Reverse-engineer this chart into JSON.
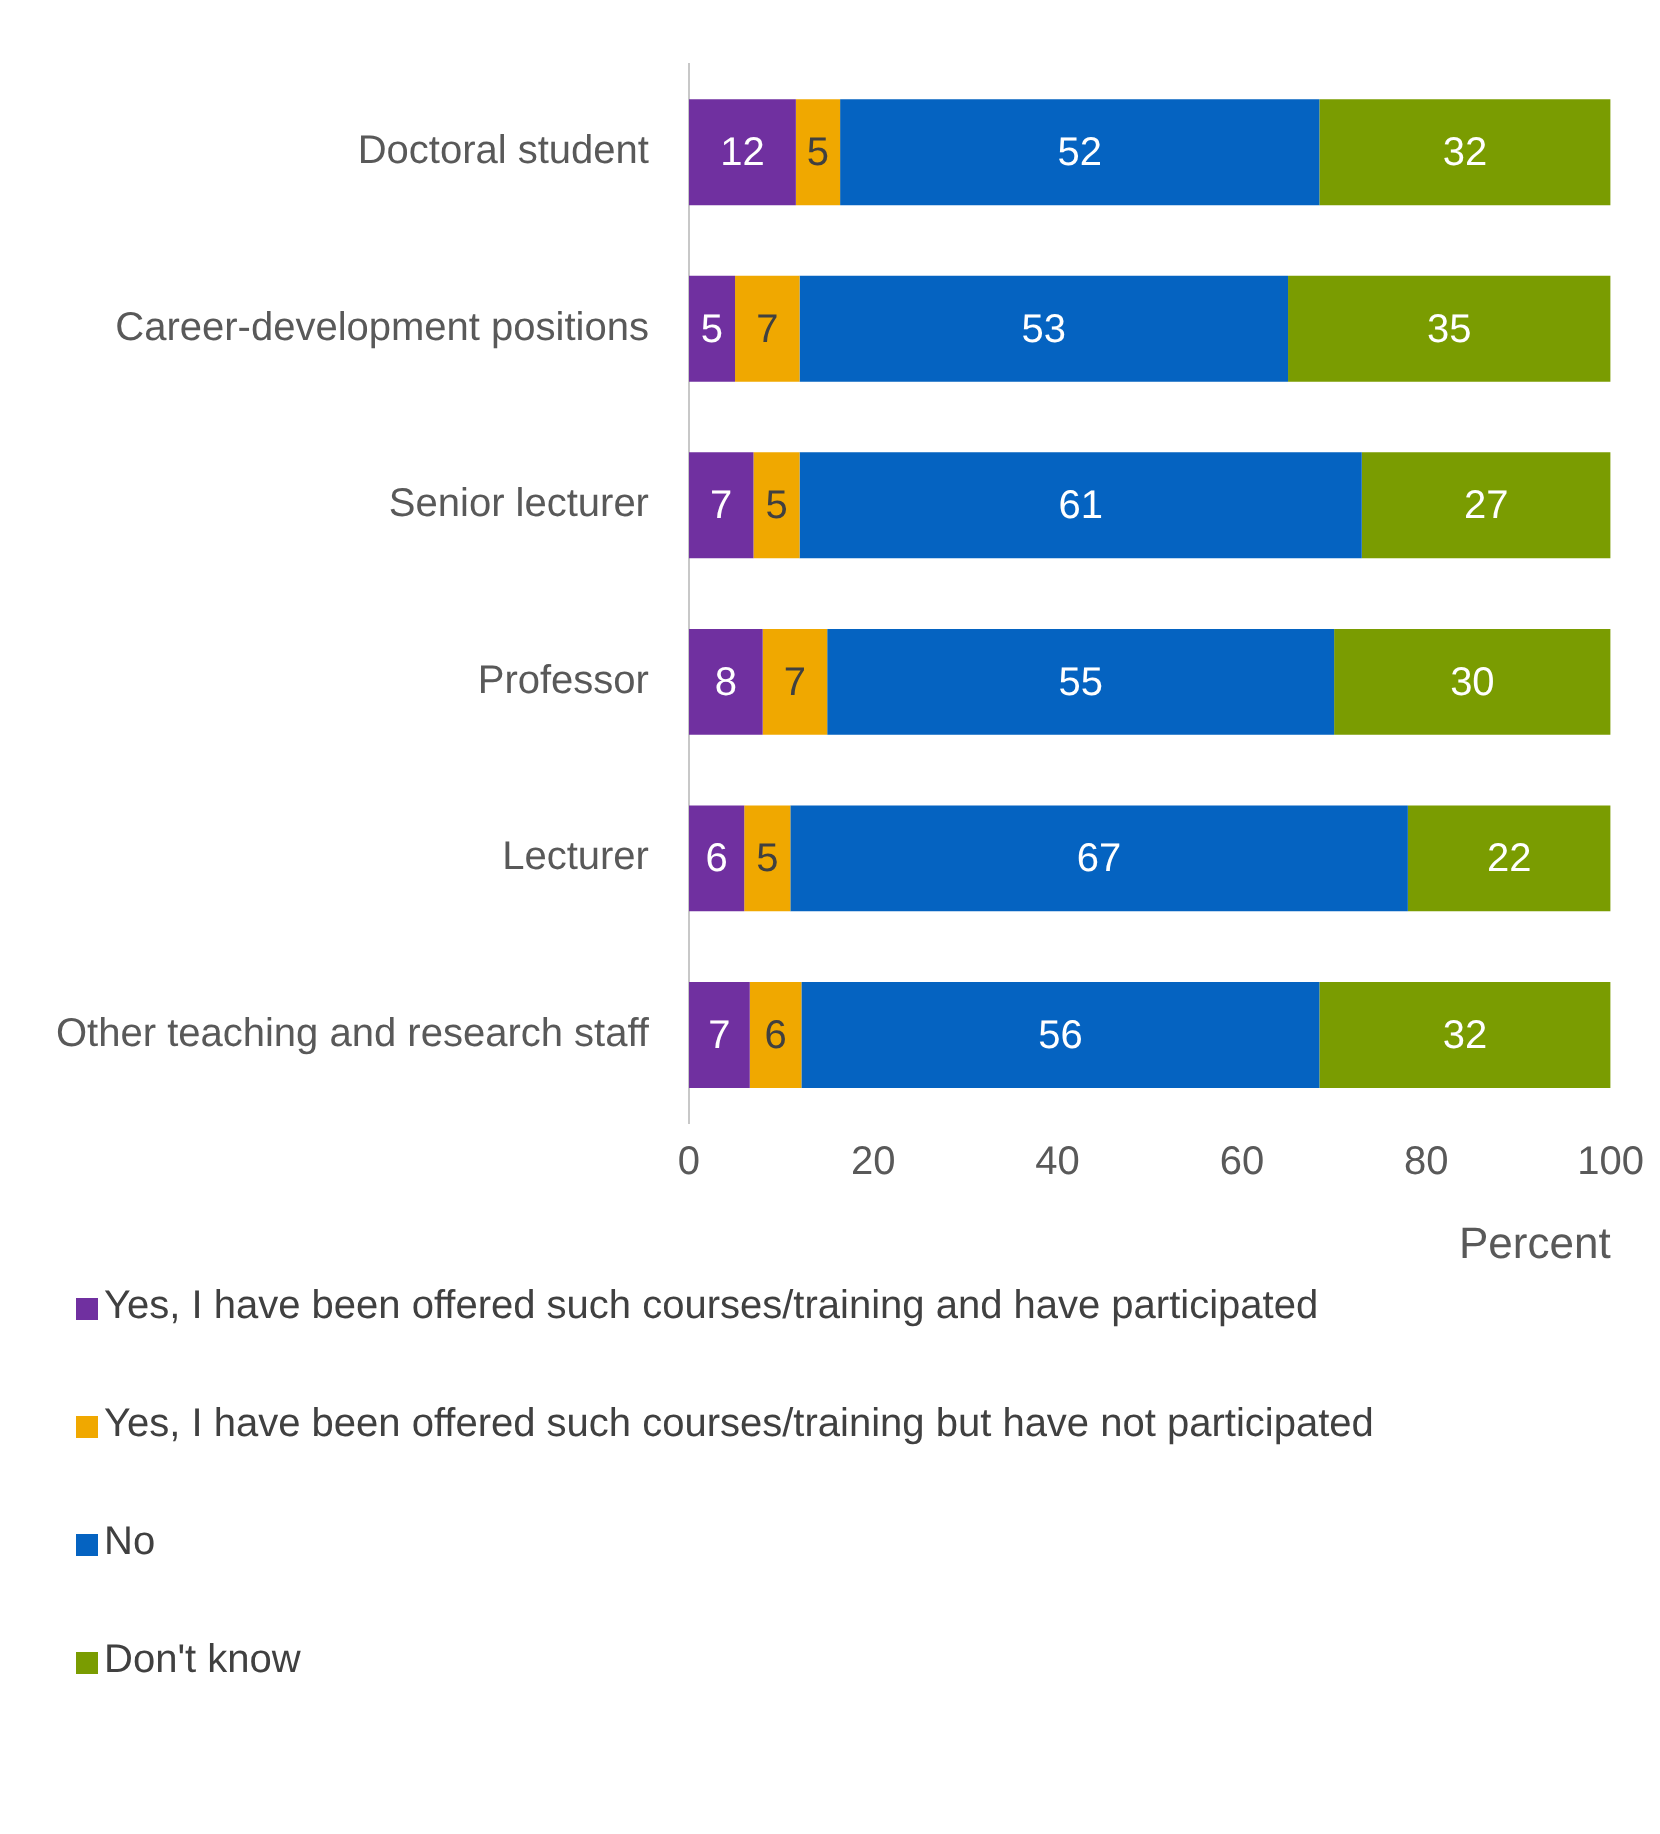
{
  "chart_data": {
    "type": "bar",
    "orientation": "horizontal",
    "stacked": true,
    "categories": [
      "Doctoral student",
      "Career-development positions",
      "Senior lecturer",
      "Professor",
      "Lecturer",
      "Other teaching and research staff"
    ],
    "series": [
      {
        "name": "Yes, I have been offered such courses/training and have participated",
        "color": "#7030a0",
        "values": [
          11.6,
          5,
          7,
          8,
          6,
          6.6
        ],
        "value_labels": [
          "12",
          "5",
          "7",
          "8",
          "6",
          "7"
        ]
      },
      {
        "name": "Yes, I have been offered such courses/training but have not participated",
        "color": "#f0a800",
        "values": [
          4.8,
          7,
          5,
          7,
          5,
          5.6
        ],
        "value_labels": [
          "5",
          "7",
          "5",
          "7",
          "5",
          "6"
        ]
      },
      {
        "name": "No",
        "color": "#0563c1",
        "values": [
          52,
          53,
          61,
          55,
          67,
          56.2
        ],
        "value_labels": [
          "52",
          "53",
          "61",
          "55",
          "67",
          "56"
        ]
      },
      {
        "name": "Don't know",
        "color": "#7a9c01",
        "values": [
          31.6,
          35,
          27,
          30,
          22,
          31.6
        ],
        "value_labels": [
          "32",
          "35",
          "27",
          "30",
          "22",
          "32"
        ]
      }
    ],
    "xlim": [
      0,
      100
    ],
    "xticks": [
      0,
      20,
      40,
      60,
      80,
      100
    ],
    "xlabel": "Percent",
    "grid": false,
    "legend": "bottom"
  }
}
